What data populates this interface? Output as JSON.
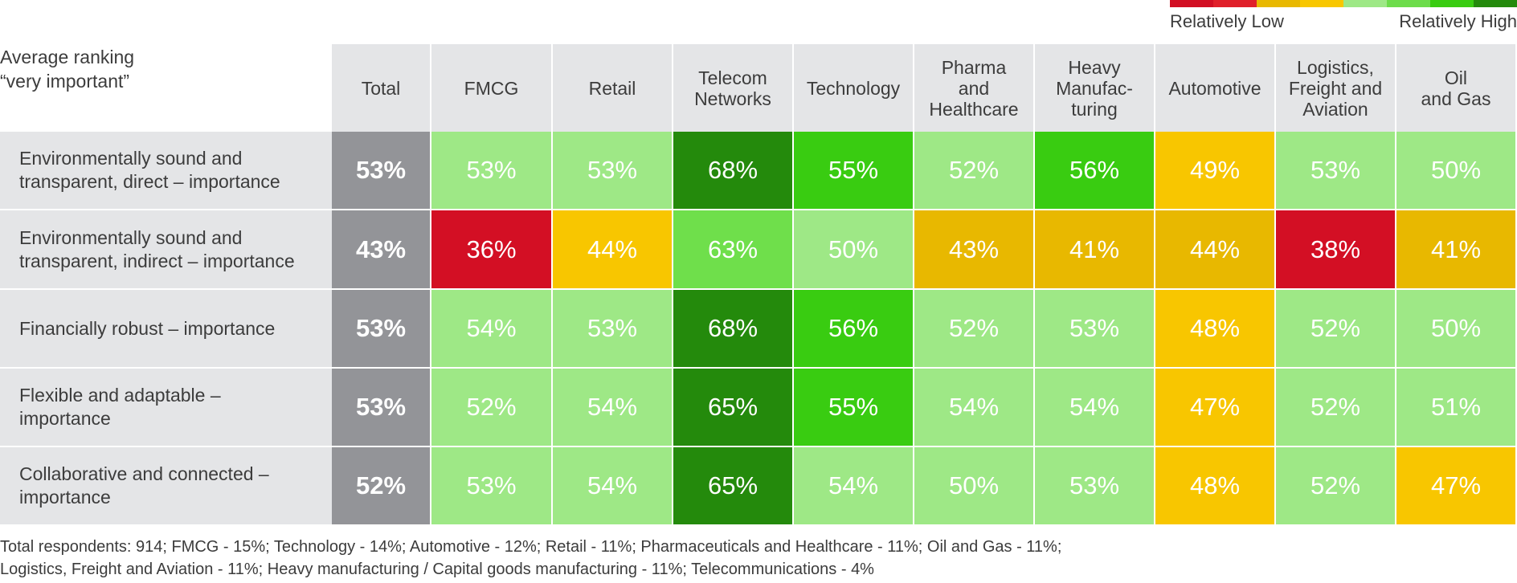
{
  "legend": {
    "low_label": "Relatively Low",
    "high_label": "Relatively High",
    "scale_colors": [
      "#d20f23",
      "#e0202a",
      "#e8b800",
      "#f8c700",
      "#9ee886",
      "#6ddc4b",
      "#39cc11",
      "#248a0c"
    ]
  },
  "corner_label": {
    "line1": "Average ranking",
    "line2": "“very important”"
  },
  "palette": {
    "total": "#939498",
    "red": "#d30f24",
    "gold": "#e8b800",
    "yellow": "#f8c600",
    "pale_green": "#9ee886",
    "light_green": "#6fdf4b",
    "green": "#39cc11",
    "dark_green": "#248a0c"
  },
  "chart_data": {
    "type": "heatmap",
    "title": "Average ranking “very important”",
    "columns": [
      "Total",
      "FMCG",
      "Retail",
      "Telecom\nNetworks",
      "Technology",
      "Pharma\nand\nHealthcare",
      "Heavy\nManufac-\nturing",
      "Automotive",
      "Logistics,\nFreight and\nAviation",
      "Oil\nand Gas"
    ],
    "rows": [
      {
        "label": "Environmentally sound and\ntransparent, direct – importance",
        "values": [
          53,
          53,
          53,
          68,
          55,
          52,
          56,
          49,
          53,
          50
        ],
        "display": [
          "53%",
          "53%",
          "53%",
          "68%",
          "55%",
          "52%",
          "56%",
          "49%",
          "53%",
          "50%"
        ],
        "levels": [
          "total",
          "pale_green",
          "pale_green",
          "dark_green",
          "green",
          "pale_green",
          "green",
          "yellow",
          "pale_green",
          "pale_green"
        ]
      },
      {
        "label": "Environmentally sound and\ntransparent, indirect – importance",
        "values": [
          43,
          36,
          44,
          63,
          50,
          43,
          41,
          44,
          38,
          41
        ],
        "display": [
          "43%",
          "36%",
          "44%",
          "63%",
          "50%",
          "43%",
          "41%",
          "44%",
          "38%",
          "41%"
        ],
        "levels": [
          "total",
          "red",
          "yellow",
          "light_green",
          "pale_green",
          "gold",
          "gold",
          "gold",
          "red",
          "gold"
        ]
      },
      {
        "label": "Financially robust – importance",
        "values": [
          53,
          54,
          53,
          68,
          56,
          52,
          53,
          48,
          52,
          50
        ],
        "display": [
          "53%",
          "54%",
          "53%",
          "68%",
          "56%",
          "52%",
          "53%",
          "48%",
          "52%",
          "50%"
        ],
        "levels": [
          "total",
          "pale_green",
          "pale_green",
          "dark_green",
          "green",
          "pale_green",
          "pale_green",
          "yellow",
          "pale_green",
          "pale_green"
        ]
      },
      {
        "label": "Flexible and adaptable –\nimportance",
        "values": [
          53,
          52,
          54,
          65,
          55,
          54,
          54,
          47,
          52,
          51
        ],
        "display": [
          "53%",
          "52%",
          "54%",
          "65%",
          "55%",
          "54%",
          "54%",
          "47%",
          "52%",
          "51%"
        ],
        "levels": [
          "total",
          "pale_green",
          "pale_green",
          "dark_green",
          "green",
          "pale_green",
          "pale_green",
          "yellow",
          "pale_green",
          "pale_green"
        ]
      },
      {
        "label": "Collaborative and connected –\nimportance",
        "values": [
          52,
          53,
          54,
          65,
          54,
          50,
          53,
          48,
          52,
          47
        ],
        "display": [
          "52%",
          "53%",
          "54%",
          "65%",
          "54%",
          "50%",
          "53%",
          "48%",
          "52%",
          "47%"
        ],
        "levels": [
          "total",
          "pale_green",
          "pale_green",
          "dark_green",
          "pale_green",
          "pale_green",
          "pale_green",
          "yellow",
          "pale_green",
          "yellow"
        ]
      }
    ]
  },
  "footnote": {
    "line1": "Total respondents: 914; FMCG - 15%; Technology - 14%; Automotive - 12%; Retail - 11%; Pharmaceuticals and Healthcare - 11%; Oil and Gas - 11%;",
    "line2": "Logistics, Freight and Aviation - 11%; Heavy manufacturing / Capital goods manufacturing - 11%; Telecommunications - 4%"
  }
}
